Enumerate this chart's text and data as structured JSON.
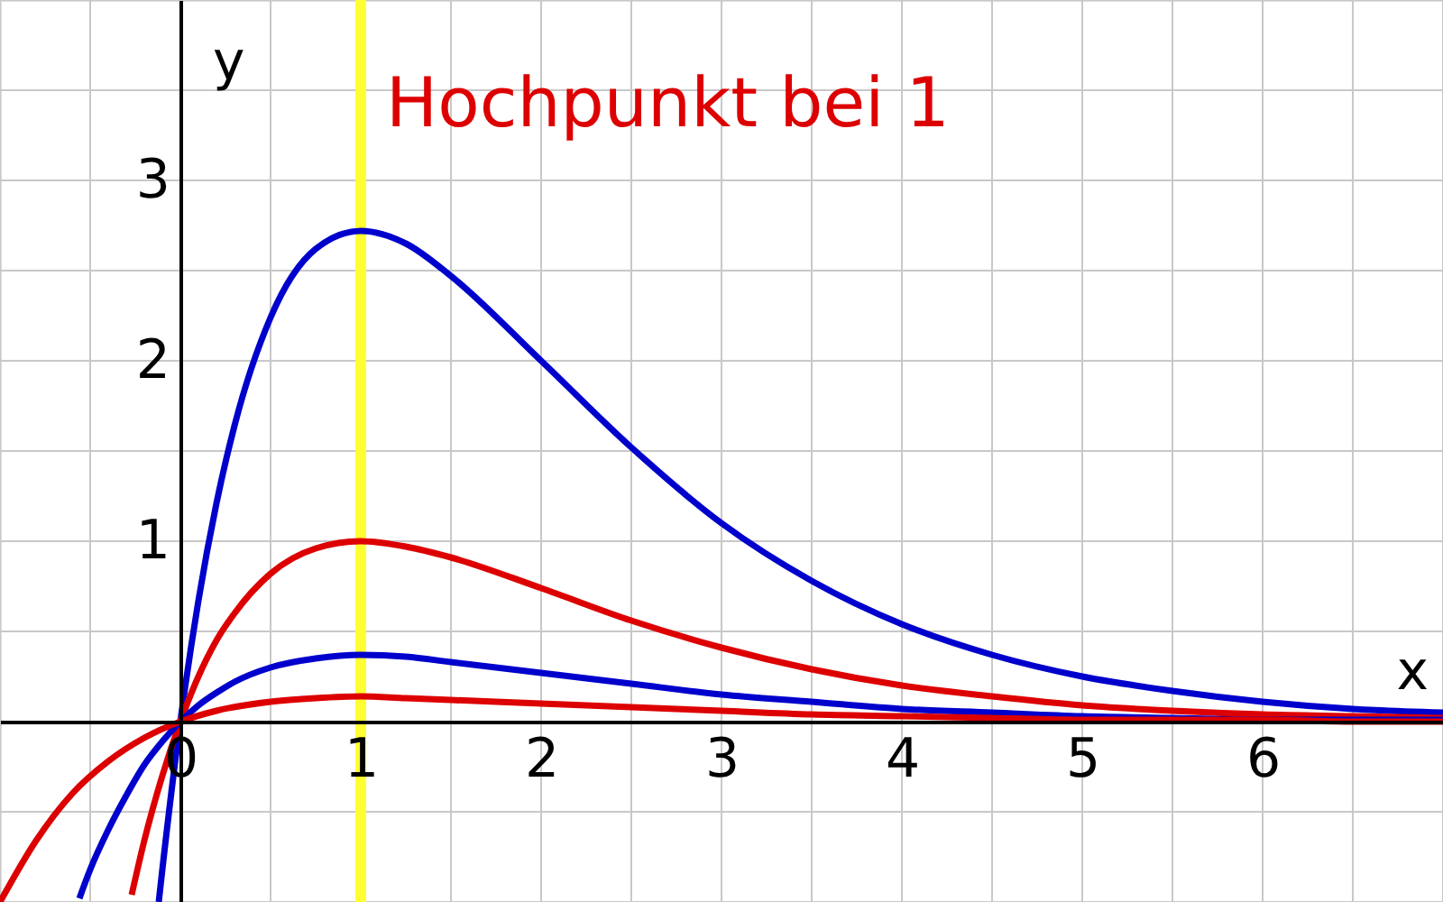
{
  "chart_data": {
    "type": "line",
    "xlabel": "x",
    "ylabel": "y",
    "xlim": [
      -1,
      7
    ],
    "ylim": [
      -1,
      4
    ],
    "xticks": [
      0,
      1,
      2,
      3,
      4,
      5,
      6
    ],
    "yticks": [
      1,
      2,
      3
    ],
    "grid": true,
    "line_style": "solid",
    "marker": "none",
    "ref_lines": [
      {
        "axis": "x",
        "value": 1,
        "label": "Hochpunkt bei 1",
        "color": "#ffff33"
      }
    ],
    "series": [
      {
        "color": "#0000cc",
        "x": [
          -0.12,
          -0.1,
          0,
          0.1,
          0.2,
          0.3,
          0.5,
          0.75,
          1,
          1.25,
          1.5,
          2,
          2.5,
          3,
          3.5,
          4,
          4.5,
          5,
          5.5,
          6,
          6.5,
          7
        ],
        "values": [
          -1.0,
          -0.82,
          0,
          0.67,
          1.21,
          1.64,
          2.24,
          2.62,
          2.72,
          2.65,
          2.47,
          2.0,
          1.52,
          1.1,
          0.78,
          0.54,
          0.37,
          0.25,
          0.17,
          0.11,
          0.07,
          0.05
        ]
      },
      {
        "color": "#dd0000",
        "x": [
          -0.27,
          -0.2,
          -0.1,
          0,
          0.1,
          0.2,
          0.3,
          0.5,
          0.75,
          1,
          1.25,
          1.5,
          2,
          2.5,
          3,
          3.5,
          4,
          4.5,
          5,
          5.5,
          6,
          6.5,
          7
        ],
        "values": [
          -0.96,
          -0.66,
          -0.3,
          0,
          0.25,
          0.45,
          0.6,
          0.82,
          0.96,
          1.0,
          0.97,
          0.91,
          0.74,
          0.56,
          0.41,
          0.29,
          0.2,
          0.14,
          0.09,
          0.06,
          0.04,
          0.03,
          0.02
        ]
      },
      {
        "color": "#0000cc",
        "x": [
          -0.56,
          -0.5,
          -0.4,
          -0.3,
          -0.2,
          -0.1,
          0,
          0.1,
          0.2,
          0.3,
          0.5,
          0.75,
          1,
          1.25,
          1.5,
          2,
          2.5,
          3,
          3.5,
          4,
          4.5,
          5,
          5.5,
          6,
          6.5,
          7
        ],
        "values": [
          -0.98,
          -0.82,
          -0.6,
          -0.41,
          -0.24,
          -0.11,
          0,
          0.09,
          0.16,
          0.22,
          0.3,
          0.35,
          0.37,
          0.36,
          0.33,
          0.27,
          0.21,
          0.15,
          0.11,
          0.07,
          0.05,
          0.03,
          0.02,
          0.01,
          0.01,
          0.01
        ]
      },
      {
        "color": "#dd0000",
        "x": [
          -1,
          -0.8,
          -0.6,
          -0.4,
          -0.2,
          0,
          0.2,
          0.5,
          0.75,
          1,
          1.25,
          1.5,
          2,
          2.5,
          3,
          3.5,
          4,
          4.5,
          5,
          5.5,
          6,
          6.5,
          7
        ],
        "values": [
          -1.0,
          -0.66,
          -0.4,
          -0.22,
          -0.09,
          0,
          0.06,
          0.11,
          0.13,
          0.14,
          0.13,
          0.12,
          0.1,
          0.08,
          0.06,
          0.04,
          0.03,
          0.02,
          0.01,
          0.01,
          0.01,
          0,
          0
        ]
      }
    ]
  }
}
